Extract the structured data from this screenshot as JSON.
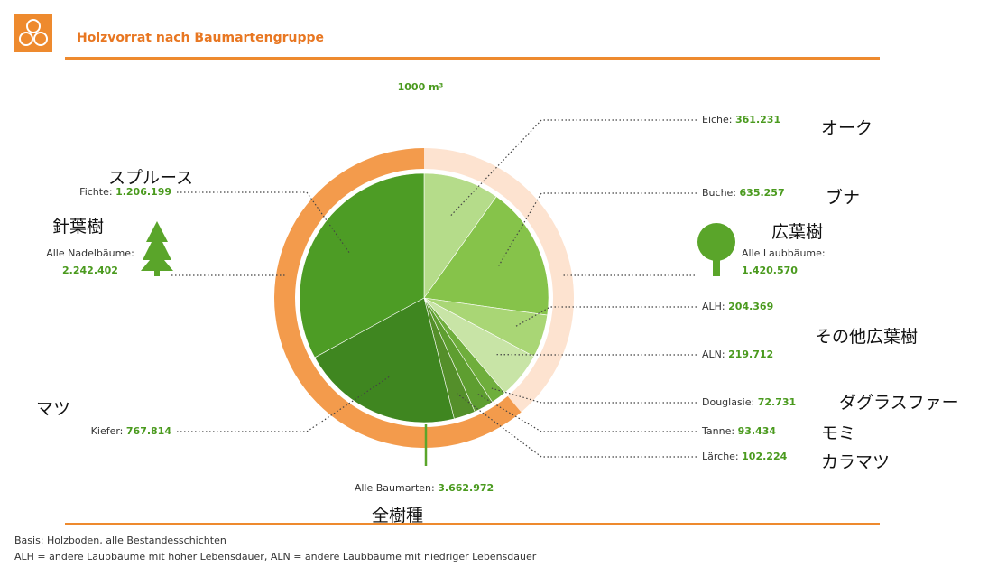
{
  "chart_data": {
    "type": "pie",
    "title": "Holzvorrat nach Baumartengruppe",
    "unit": "1000 m³",
    "categories": [
      "Eiche:",
      "Buche:",
      "ALH:",
      "ALN:",
      "Douglasie:",
      "Tanne:",
      "Lärche:",
      "Kiefer:",
      "Fichte:"
    ],
    "values": [
      361231,
      635257,
      204369,
      219712,
      72731,
      93434,
      102224,
      767814,
      1206199
    ],
    "value_labels": [
      "361.231",
      "635.257",
      "204.369",
      "219.712",
      "72.731",
      "93.434",
      "102.224",
      "767.814",
      "1.206.199"
    ],
    "colors": [
      "#b5dc8a",
      "#86c34a",
      "#a9d675",
      "#c8e4a6",
      "#6fae3c",
      "#5e9e30",
      "#548f2a",
      "#3f8620",
      "#4d9c25"
    ],
    "groups": {
      "categories": [
        "Alle Laubbäume:",
        "Alle Nadelbäume:"
      ],
      "values": [
        1420570,
        2242402
      ],
      "value_labels": [
        "1.420.570",
        "2.242.402"
      ],
      "colors": [
        "#fde3d0",
        "#f39b4c"
      ]
    },
    "total": {
      "label": "Alle Baumarten:",
      "value": 3662972,
      "value_label": "3.662.972"
    },
    "annotations": [
      "オーク",
      "ブナ",
      "広葉樹",
      "その他広葉樹",
      "ダグラスファー",
      "モミ",
      "カラマツ",
      "スプルース",
      "針葉樹",
      "マツ",
      "全樹種"
    ],
    "notes": [
      "Basis: Holzboden, alle Bestandesschichten",
      "ALH = andere Laubbäume mit hoher Lebensdauer, ALN = andere Laubbäume mit niedriger Lebensdauer"
    ]
  }
}
